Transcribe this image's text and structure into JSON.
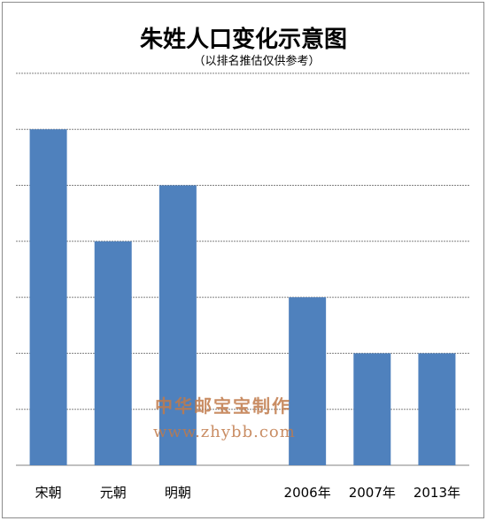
{
  "chart_data": {
    "type": "bar",
    "title": "朱姓人口变化示意图",
    "subtitle": "（以排名推估仅供参考）",
    "categories": [
      "宋朝",
      "元朝",
      "明朝",
      "",
      "2006年",
      "2007年",
      "2013年"
    ],
    "values": [
      6,
      4,
      5,
      null,
      3,
      2,
      2
    ],
    "ylim": [
      0,
      7
    ],
    "grid": true,
    "bar_color": "#4f81bd",
    "grid_color": "#808080"
  },
  "watermark": {
    "line1": "中华邮宝宝制作",
    "line2": "www.zhybb.com"
  }
}
